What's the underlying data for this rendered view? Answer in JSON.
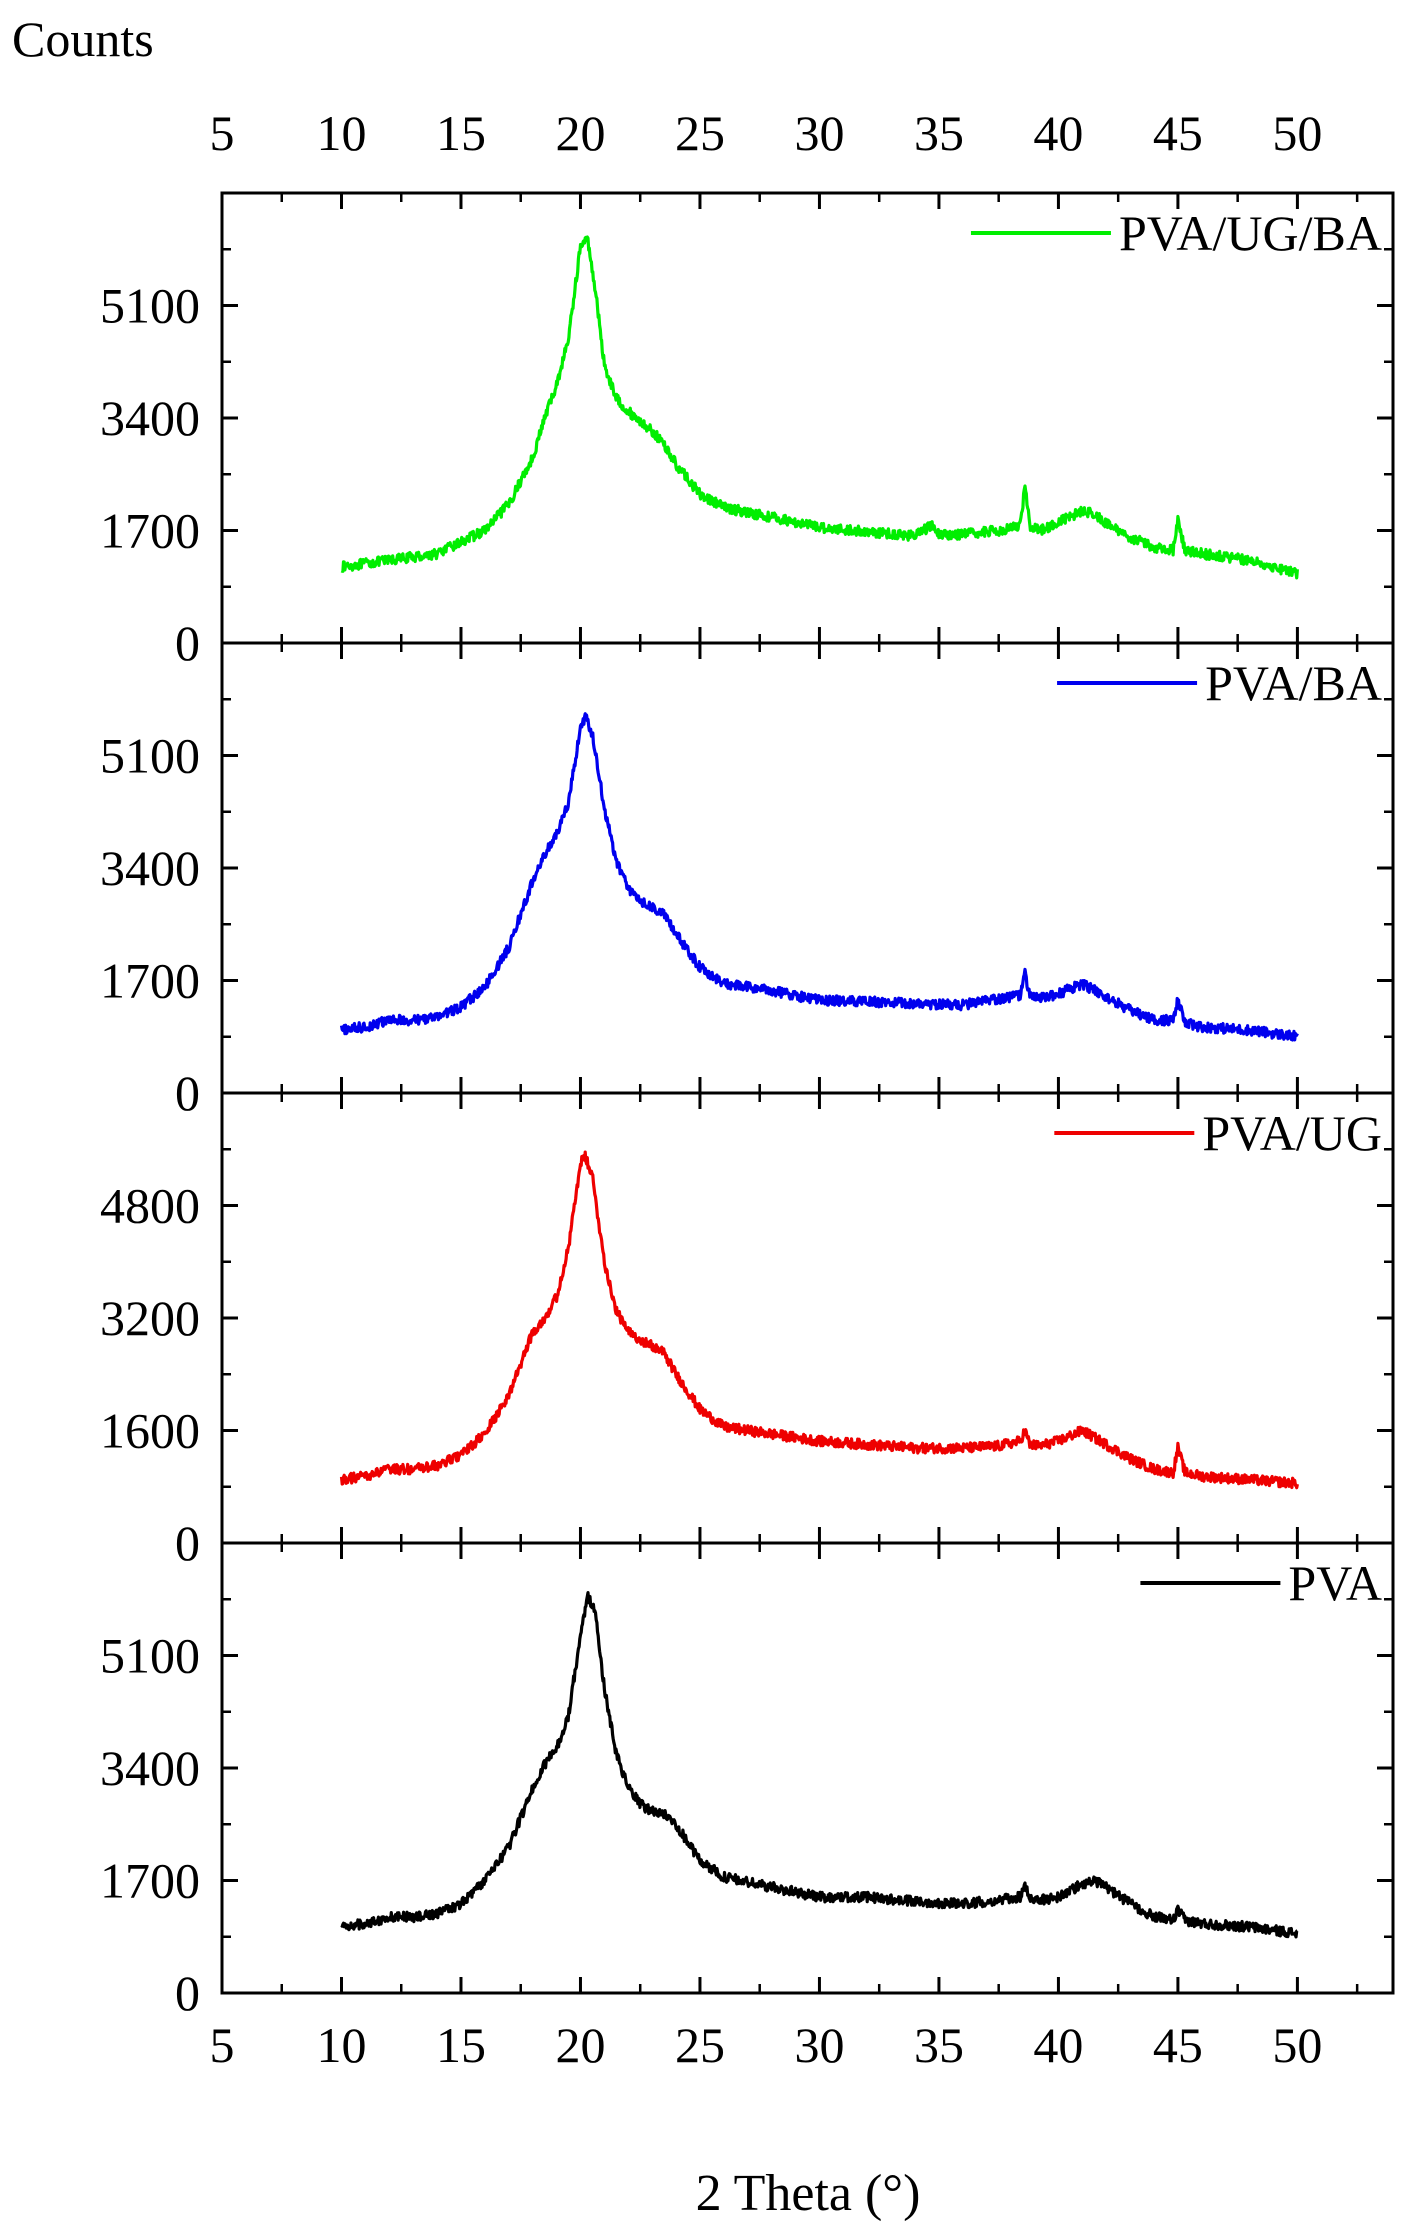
{
  "figure": {
    "counts_label": "Counts",
    "xlabel": "2 Theta (°)"
  },
  "chart_data": {
    "type": "line",
    "x_axis": {
      "range": [
        5,
        54
      ],
      "ticks": [
        5,
        10,
        15,
        20,
        25,
        30,
        35,
        40,
        45,
        50
      ],
      "tick_labels": [
        "5",
        "10",
        "15",
        "20",
        "25",
        "30",
        "35",
        "40",
        "45",
        "50"
      ]
    },
    "panels": [
      {
        "name": "PVA/UG/BA",
        "color": "#00ee00",
        "legend": "PVA/UG/BA",
        "ylim": [
          0,
          6800
        ],
        "yticks": [
          0,
          1700,
          3400,
          5100
        ],
        "ytick_labels": [
          "0",
          "1700",
          "3400",
          "5100"
        ],
        "x": [
          10,
          12,
          14,
          16,
          17,
          18,
          18.5,
          19,
          19.5,
          20,
          20.3,
          20.6,
          21,
          21.5,
          22,
          22.5,
          23,
          23.5,
          24,
          25,
          26,
          28,
          30,
          32,
          34,
          34.7,
          35,
          36,
          37.5,
          38.4,
          38.6,
          38.8,
          39.2,
          40,
          41,
          41.5,
          42,
          43,
          44,
          44.8,
          45,
          45.3,
          46,
          48,
          50
        ],
        "y": [
          1150,
          1250,
          1350,
          1700,
          2100,
          2800,
          3400,
          3900,
          4600,
          6000,
          6100,
          5400,
          4200,
          3700,
          3500,
          3350,
          3200,
          3000,
          2700,
          2250,
          2050,
          1900,
          1750,
          1680,
          1620,
          1780,
          1640,
          1640,
          1700,
          1780,
          2350,
          1780,
          1700,
          1820,
          2000,
          1950,
          1800,
          1600,
          1450,
          1400,
          1850,
          1400,
          1350,
          1250,
          1050
        ]
      },
      {
        "name": "PVA/BA",
        "color": "#0000ee",
        "legend": "PVA/BA",
        "ylim": [
          0,
          6800
        ],
        "yticks": [
          0,
          1700,
          3400,
          5100
        ],
        "ytick_labels": [
          "0",
          "1700",
          "3400",
          "5100"
        ],
        "x": [
          10,
          11,
          12,
          13,
          14,
          15,
          16,
          17,
          18,
          18.5,
          19,
          19.5,
          20,
          20.2,
          20.5,
          21,
          21.5,
          22,
          22.5,
          23,
          23.5,
          24,
          25,
          26,
          28,
          30,
          32,
          34,
          36,
          37.5,
          38.4,
          38.6,
          38.8,
          39.2,
          40,
          41,
          42,
          43,
          44,
          44.8,
          45,
          45.3,
          46,
          48,
          50
        ],
        "y": [
          950,
          1000,
          1100,
          1100,
          1150,
          1300,
          1600,
          2200,
          3200,
          3600,
          3900,
          4400,
          5500,
          5700,
          5400,
          4300,
          3500,
          3100,
          2900,
          2800,
          2700,
          2400,
          1900,
          1650,
          1550,
          1400,
          1380,
          1350,
          1330,
          1420,
          1480,
          1800,
          1480,
          1420,
          1500,
          1650,
          1450,
          1250,
          1100,
          1100,
          1400,
          1050,
          1000,
          950,
          850
        ]
      },
      {
        "name": "PVA/UG",
        "color": "#ee0000",
        "legend": "PVA/UG",
        "ylim": [
          0,
          6400
        ],
        "yticks": [
          0,
          1600,
          3200,
          4800
        ],
        "ytick_labels": [
          "0",
          "1600",
          "3200",
          "4800"
        ],
        "x": [
          10,
          11,
          12,
          13,
          14,
          15,
          16,
          17,
          18,
          18.5,
          19,
          19.5,
          20,
          20.2,
          20.5,
          21,
          21.5,
          22,
          22.5,
          23,
          23.5,
          24,
          25,
          26,
          28,
          30,
          32,
          34,
          36,
          37.5,
          38.4,
          38.6,
          38.8,
          39.2,
          40,
          41,
          42,
          43,
          44,
          44.8,
          45,
          45.3,
          46,
          48,
          50
        ],
        "y": [
          900,
          950,
          1050,
          1050,
          1100,
          1250,
          1550,
          2100,
          3000,
          3200,
          3500,
          4200,
          5400,
          5500,
          5200,
          4000,
          3300,
          3000,
          2900,
          2800,
          2700,
          2400,
          1900,
          1650,
          1550,
          1450,
          1400,
          1350,
          1350,
          1380,
          1450,
          1600,
          1400,
          1380,
          1450,
          1600,
          1400,
          1200,
          1050,
          1000,
          1350,
          1000,
          950,
          900,
          850
        ]
      },
      {
        "name": "PVA",
        "color": "#000000",
        "legend": "PVA",
        "ylim": [
          0,
          6800
        ],
        "yticks": [
          0,
          1700,
          3400,
          5100
        ],
        "ytick_labels": [
          "0",
          "1700",
          "3400",
          "5100"
        ],
        "x": [
          10,
          11,
          12,
          13,
          14,
          15,
          16,
          17,
          18,
          18.5,
          19,
          19.5,
          20,
          20.3,
          20.6,
          21,
          21.5,
          22,
          22.5,
          23,
          23.5,
          24,
          25,
          26,
          28,
          30,
          32,
          34,
          36,
          37.5,
          38.4,
          38.6,
          38.8,
          39.2,
          40,
          41,
          41.5,
          42,
          43,
          44,
          44.8,
          45,
          45.3,
          46,
          48,
          50
        ],
        "y": [
          1000,
          1050,
          1150,
          1150,
          1200,
          1350,
          1700,
          2200,
          3100,
          3450,
          3700,
          4200,
          5400,
          6000,
          5800,
          4600,
          3600,
          3100,
          2850,
          2750,
          2700,
          2550,
          2000,
          1750,
          1600,
          1450,
          1450,
          1380,
          1350,
          1400,
          1450,
          1600,
          1450,
          1400,
          1450,
          1650,
          1700,
          1600,
          1350,
          1150,
          1100,
          1250,
          1100,
          1050,
          1000,
          900
        ]
      }
    ]
  }
}
